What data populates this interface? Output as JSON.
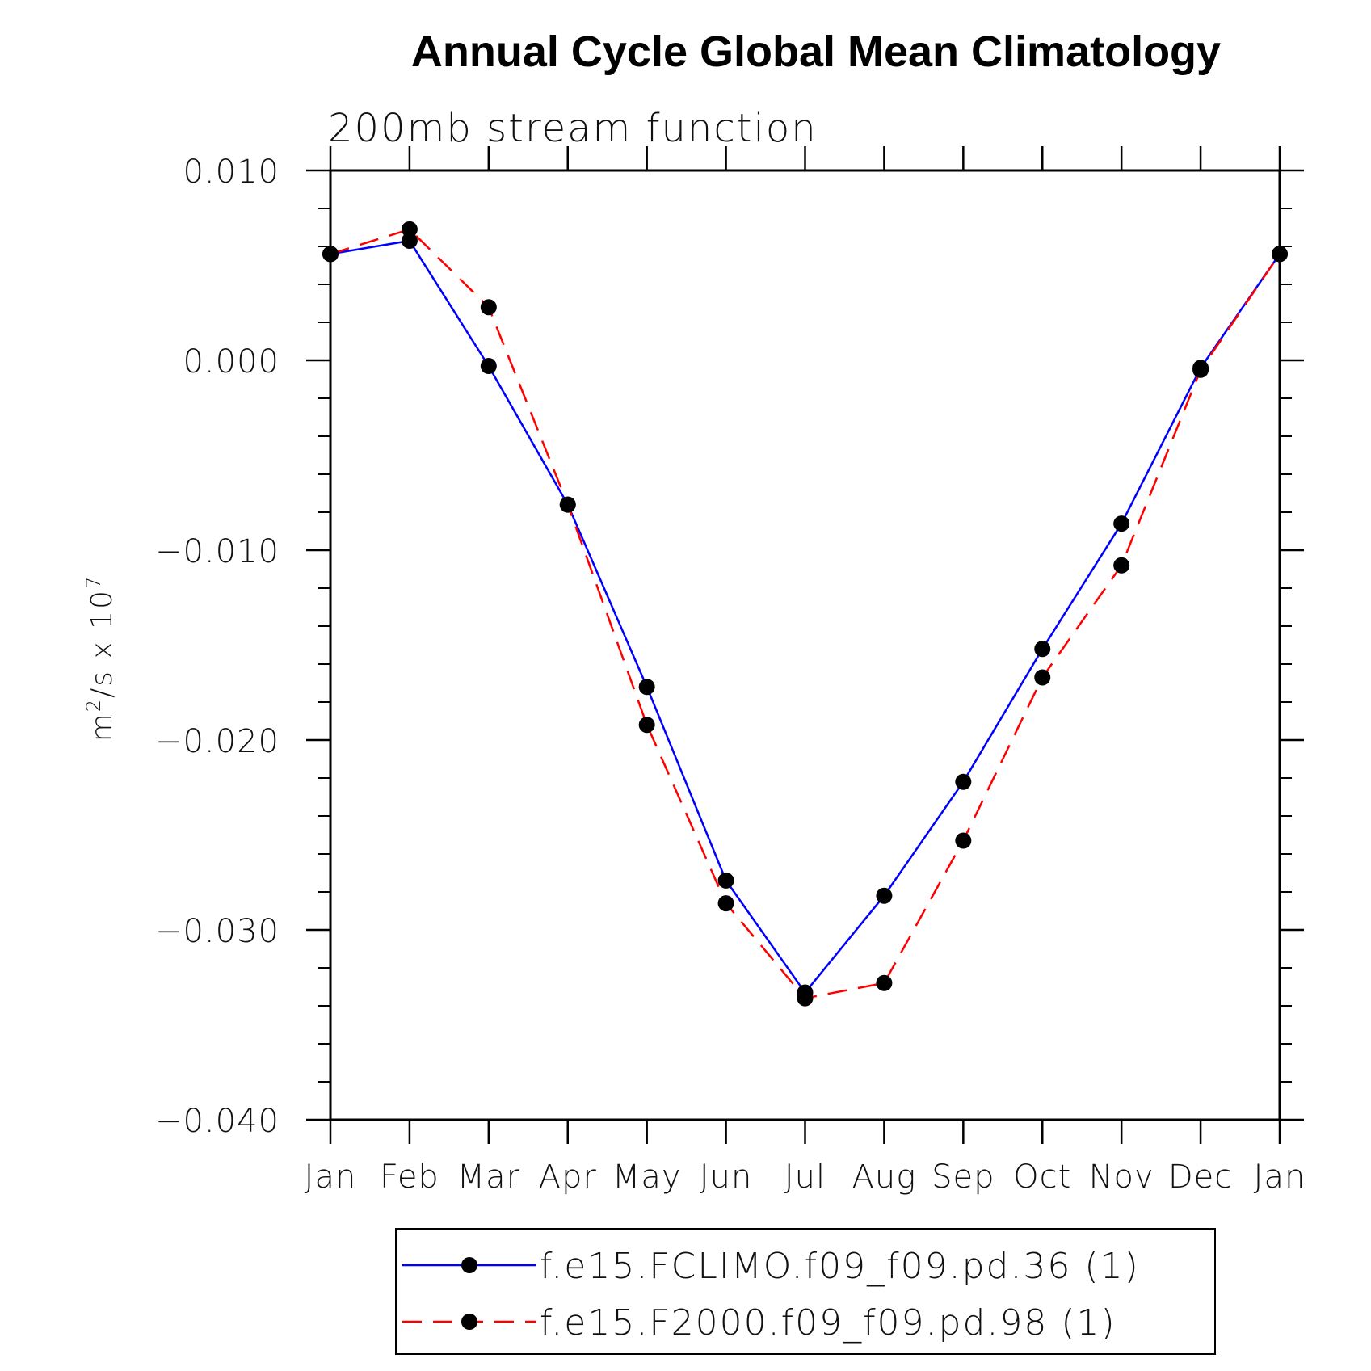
{
  "chart_data": {
    "type": "line",
    "title": "Annual Cycle Global Mean Climatology",
    "subtitle": "200mb stream function",
    "ylabel": {
      "base": "m",
      "sup1": "2",
      "mid": "/s x 10",
      "sup2": "7"
    },
    "xlabel": "",
    "categories": [
      "Jan",
      "Feb",
      "Mar",
      "Apr",
      "May",
      "Jun",
      "Jul",
      "Aug",
      "Sep",
      "Oct",
      "Nov",
      "Dec",
      "Jan"
    ],
    "ylim": [
      -0.04,
      0.01
    ],
    "yticks": [
      0.01,
      0.0,
      -0.01,
      -0.02,
      -0.03,
      -0.04
    ],
    "ytick_labels": [
      "0.010",
      "0.000",
      "−0.010",
      "−0.020",
      "−0.030",
      "−0.040"
    ],
    "grid": false,
    "legend_position": "bottom-center",
    "series": [
      {
        "name": "f.e15.FCLIMO.f09_f09.pd.36 (1)",
        "color": "#0000ff",
        "dash": "solid",
        "values": [
          0.0056,
          0.0063,
          -0.0003,
          -0.0076,
          -0.0172,
          -0.0274,
          -0.0333,
          -0.0282,
          -0.0222,
          -0.0152,
          -0.0086,
          -0.0004,
          0.0056
        ]
      },
      {
        "name": "f.e15.F2000.f09_f09.pd.98 (1)",
        "color": "#ff0000",
        "dash": "dashed",
        "values": [
          0.0056,
          0.0069,
          0.0028,
          -0.0076,
          -0.0192,
          -0.0286,
          -0.0336,
          -0.0328,
          -0.0253,
          -0.0167,
          -0.0108,
          -0.0005,
          0.0056
        ]
      }
    ]
  }
}
